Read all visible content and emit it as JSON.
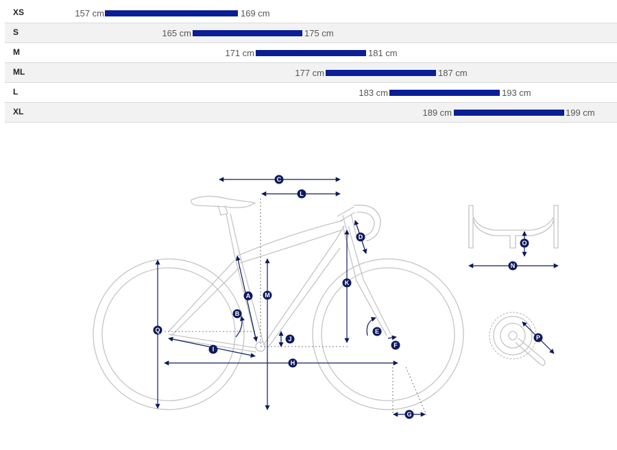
{
  "size_chart": {
    "rows": [
      {
        "size": "XS",
        "min": "157 cm",
        "max": "169 cm",
        "min_cm": 157,
        "max_cm": 169
      },
      {
        "size": "S",
        "min": "165 cm",
        "max": "175 cm",
        "min_cm": 165,
        "max_cm": 175
      },
      {
        "size": "M",
        "min": "171 cm",
        "max": "181 cm",
        "min_cm": 171,
        "max_cm": 181
      },
      {
        "size": "ML",
        "min": "177 cm",
        "max": "187 cm",
        "min_cm": 177,
        "max_cm": 187
      },
      {
        "size": "L",
        "min": "183 cm",
        "max": "193 cm",
        "min_cm": 183,
        "max_cm": 193
      },
      {
        "size": "XL",
        "min": "189 cm",
        "max": "199 cm",
        "min_cm": 189,
        "max_cm": 199
      }
    ],
    "bar_color": "#0a1e96"
  },
  "geometry": {
    "labels": {
      "A": "A",
      "B": "B",
      "C": "C",
      "D": "D",
      "E": "E",
      "F": "F",
      "G": "G",
      "H": "H",
      "I": "I",
      "J": "J",
      "K": "K",
      "L": "L",
      "M": "M",
      "N": "N",
      "O": "O",
      "P": "P",
      "Q": "Q"
    },
    "marker_color": "#0d1a5c",
    "line_color": "#bdbdbd"
  }
}
